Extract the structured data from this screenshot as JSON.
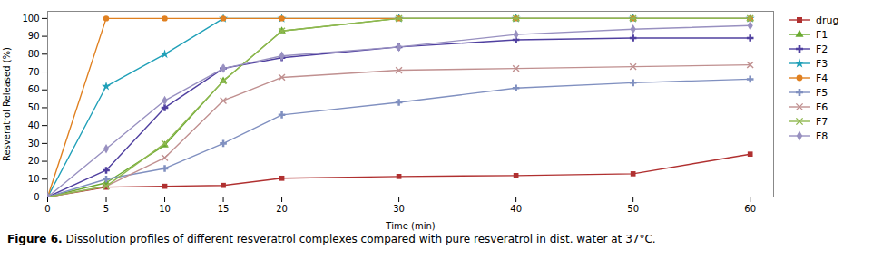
{
  "chart_data": {
    "type": "line",
    "xlabel": "Time (min)",
    "ylabel": "Resveratrol Released (%)",
    "caption": "Figure 6. Dissolution profiles of different resveratrol complexes compared with pure resveratrol in dist. water at 37°C.",
    "x": [
      0,
      5,
      10,
      15,
      20,
      30,
      40,
      50,
      60
    ],
    "series": [
      {
        "name": "drug",
        "values": [
          0,
          5.5,
          6.0,
          6.5,
          10.5,
          11.5,
          12.0,
          13.0,
          24.0
        ],
        "color": "#b03030",
        "marker": "square"
      },
      {
        "name": "F1",
        "values": [
          0,
          8,
          29,
          65,
          93,
          100,
          100,
          100,
          100
        ],
        "color": "#6aaa30",
        "marker": "triangle"
      },
      {
        "name": "F2",
        "values": [
          0,
          15,
          50,
          72,
          78,
          84,
          88,
          89,
          89
        ],
        "color": "#5040a0",
        "marker": "cross"
      },
      {
        "name": "F3",
        "values": [
          0,
          62,
          80,
          100,
          100,
          100,
          100,
          100,
          100
        ],
        "color": "#20a0b8",
        "marker": "star"
      },
      {
        "name": "F4",
        "values": [
          0,
          100,
          100,
          100,
          100,
          100,
          100,
          100,
          100
        ],
        "color": "#e08020",
        "marker": "circle"
      },
      {
        "name": "F5",
        "values": [
          0,
          10,
          16,
          30,
          46,
          53,
          61,
          64,
          66
        ],
        "color": "#8090c0",
        "marker": "cross"
      },
      {
        "name": "F6",
        "values": [
          0,
          6,
          22,
          54,
          67,
          71,
          72,
          73,
          74
        ],
        "color": "#c09090",
        "marker": "times"
      },
      {
        "name": "F7",
        "values": [
          0,
          6,
          30,
          65,
          93,
          100,
          100,
          100,
          100
        ],
        "color": "#90b850",
        "marker": "times"
      },
      {
        "name": "F8",
        "values": [
          0,
          27,
          54,
          72,
          79,
          84,
          91,
          94,
          96
        ],
        "color": "#9890c0",
        "marker": "diamond"
      }
    ],
    "xlim": [
      0,
      62
    ],
    "ylim": [
      0,
      104
    ],
    "xticks": [
      0,
      5,
      10,
      15,
      20,
      30,
      40,
      50,
      60
    ],
    "yticks": [
      0,
      10,
      20,
      30,
      40,
      50,
      60,
      70,
      80,
      90,
      100
    ],
    "legend": "right"
  }
}
